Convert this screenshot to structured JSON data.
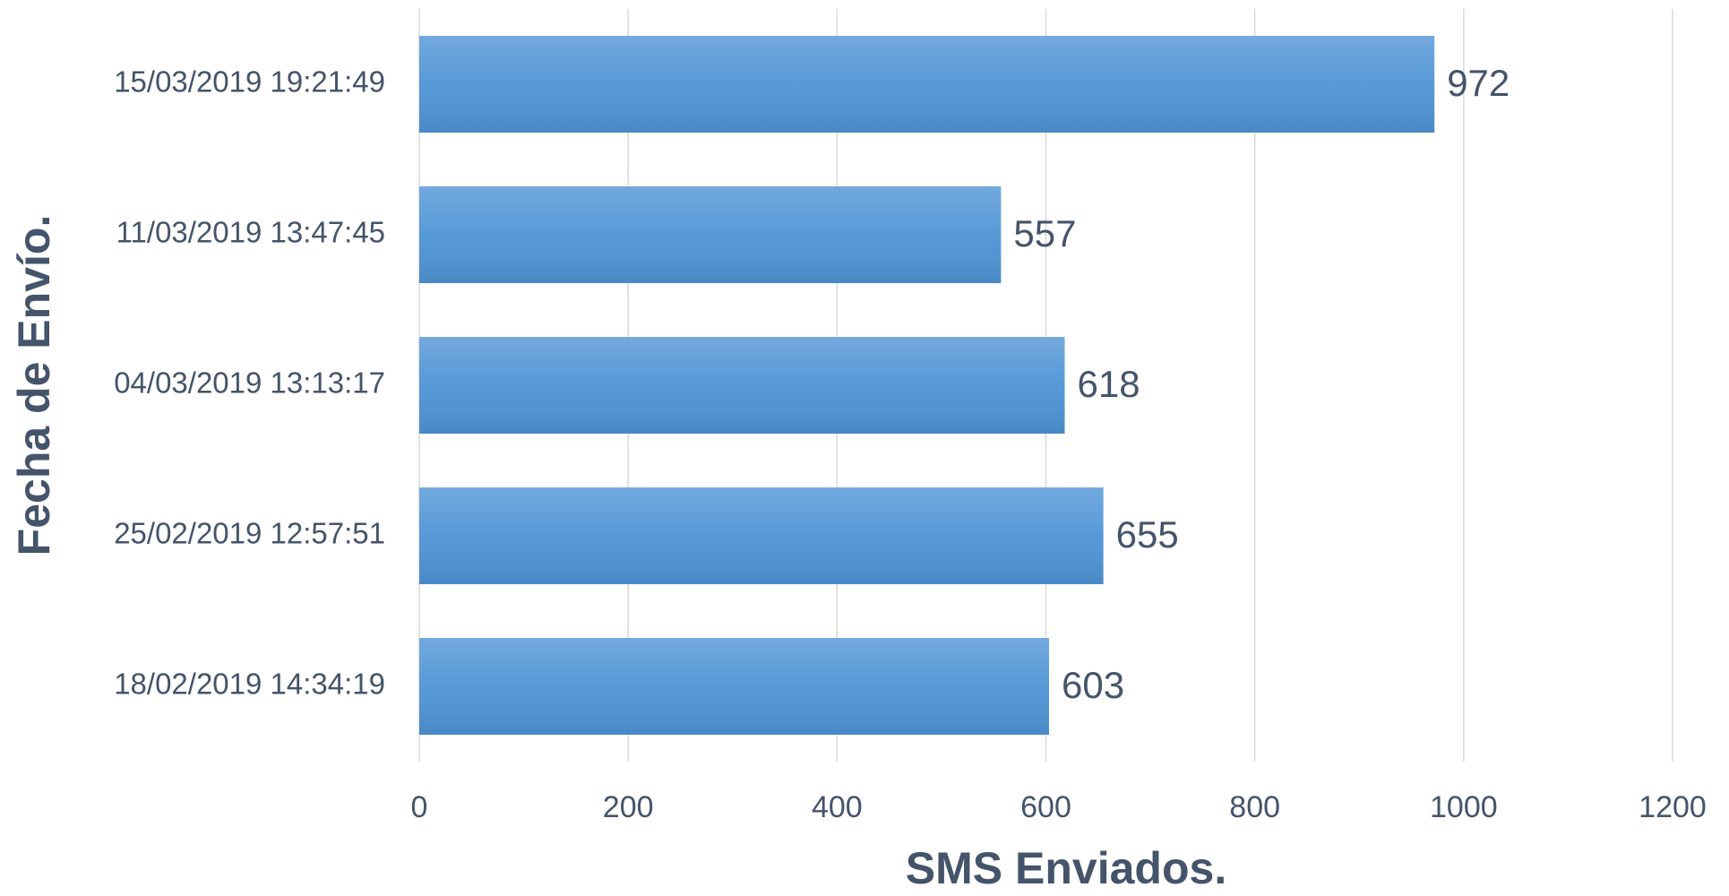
{
  "chart_data": {
    "type": "bar",
    "orientation": "horizontal",
    "x_label": "SMS Enviados.",
    "y_label": "Fecha de Envío.",
    "categories": [
      "15/03/2019 19:21:49",
      "11/03/2019 13:47:45",
      "04/03/2019 13:13:17",
      "25/02/2019 12:57:51",
      "18/02/2019 14:34:19"
    ],
    "values": [
      972,
      557,
      618,
      655,
      603
    ],
    "color": "#4f94d6",
    "xlim": [
      0,
      1200
    ],
    "xticks": [
      0,
      200,
      400,
      600,
      800,
      1000,
      1200
    ],
    "grid": true
  }
}
